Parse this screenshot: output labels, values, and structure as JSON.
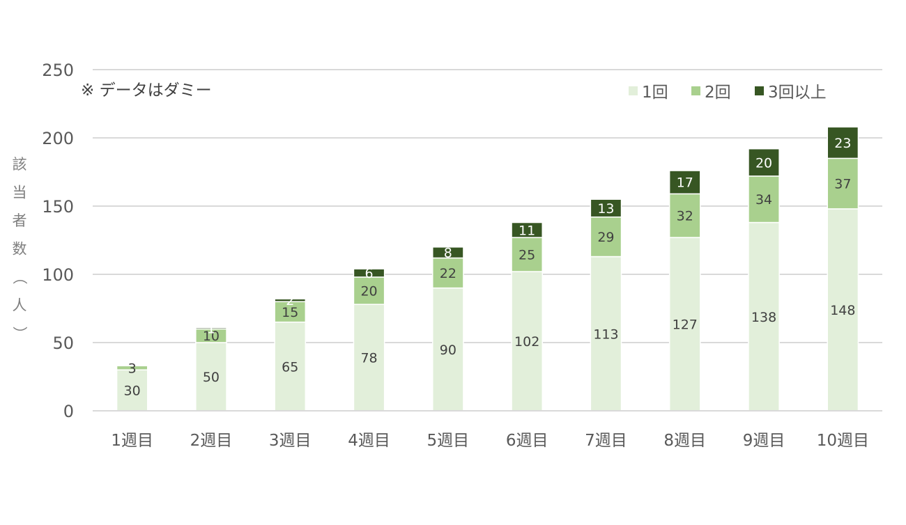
{
  "chart_data": {
    "type": "bar",
    "stacked": true,
    "title": "",
    "annotation": "※ データはダミー",
    "ylabel": "該当者数（人）",
    "xlabel": "",
    "ylim": [
      0,
      250
    ],
    "yticks": [
      0,
      50,
      100,
      150,
      200,
      250
    ],
    "grid": true,
    "legend_position": "top-right",
    "categories": [
      "1週目",
      "2週目",
      "3週目",
      "4週目",
      "5週目",
      "6週目",
      "7週目",
      "8週目",
      "9週目",
      "10週目"
    ],
    "series": [
      {
        "name": "1回",
        "color": "#e2efda",
        "label_color": "#404040",
        "values": [
          30,
          50,
          65,
          78,
          90,
          102,
          113,
          127,
          138,
          148
        ]
      },
      {
        "name": "2回",
        "color": "#a9d08e",
        "label_color": "#404040",
        "values": [
          3,
          10,
          15,
          20,
          22,
          25,
          29,
          32,
          34,
          37
        ]
      },
      {
        "name": "3回以上",
        "color": "#375623",
        "label_color": "#ffffff",
        "values": [
          0,
          1,
          2,
          6,
          8,
          11,
          13,
          17,
          20,
          23
        ]
      }
    ]
  }
}
